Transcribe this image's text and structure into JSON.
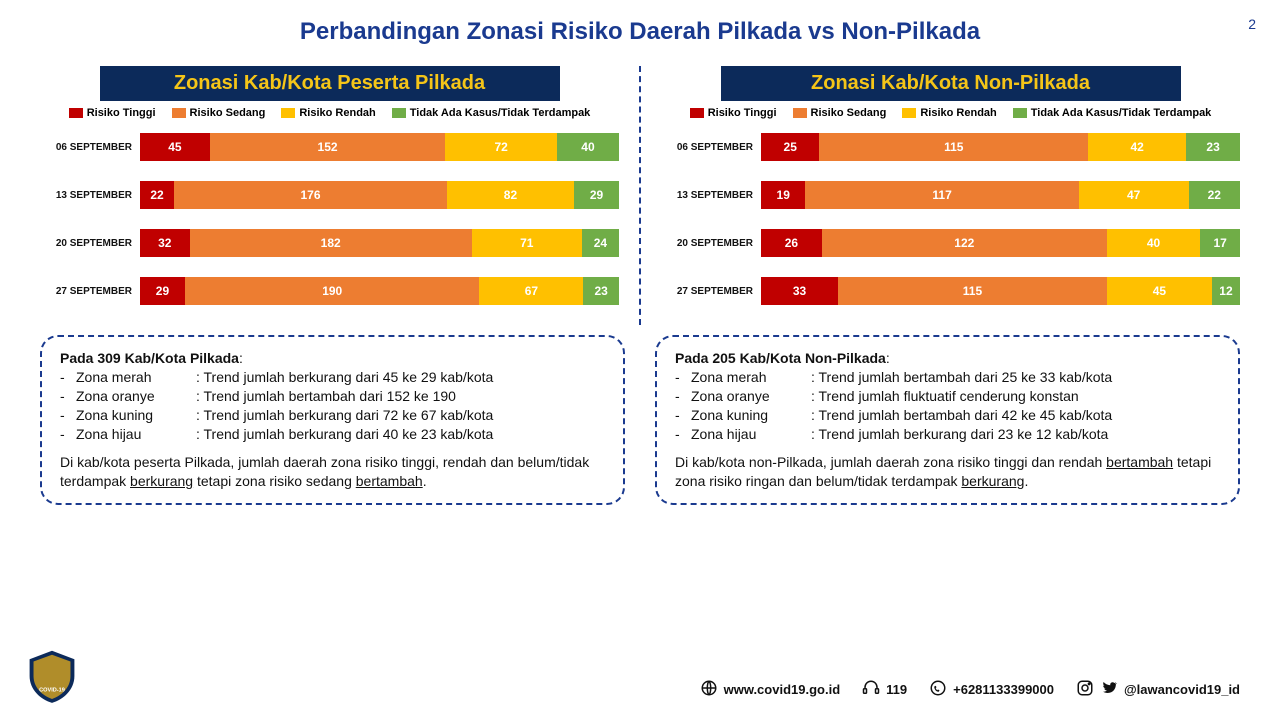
{
  "page": {
    "title": "Perbandingan Zonasi Risiko Daerah Pilkada vs Non-Pilkada",
    "number": "2",
    "background": "#ffffff",
    "title_color": "#1a3a8f"
  },
  "colors": {
    "risiko_tinggi": "#c00000",
    "risiko_sedang": "#ed7d31",
    "risiko_rendah": "#ffc000",
    "tidak_terdampak": "#70ad47",
    "panel_bg": "#0c2a5a",
    "panel_text": "#f5c518",
    "dash_border": "#1a3a8f"
  },
  "legend": {
    "items": [
      {
        "label": "Risiko Tinggi",
        "color": "#c00000"
      },
      {
        "label": "Risiko Sedang",
        "color": "#ed7d31"
      },
      {
        "label": "Risiko Rendah",
        "color": "#ffc000"
      },
      {
        "label": "Tidak Ada Kasus/Tidak Terdampak",
        "color": "#70ad47"
      }
    ]
  },
  "charts": {
    "left": {
      "title": "Zonasi Kab/Kota Peserta Pilkada",
      "type": "stacked-bar-horizontal",
      "total": 309,
      "rows": [
        {
          "label": "06 SEPTEMBER",
          "values": [
            45,
            152,
            72,
            40
          ]
        },
        {
          "label": "13 SEPTEMBER",
          "values": [
            22,
            176,
            82,
            29
          ]
        },
        {
          "label": "20 SEPTEMBER",
          "values": [
            32,
            182,
            71,
            24
          ]
        },
        {
          "label": "27 SEPTEMBER",
          "values": [
            29,
            190,
            67,
            23
          ]
        }
      ]
    },
    "right": {
      "title": "Zonasi Kab/Kota Non-Pilkada",
      "type": "stacked-bar-horizontal",
      "total": 205,
      "rows": [
        {
          "label": "06 SEPTEMBER",
          "values": [
            25,
            115,
            42,
            23
          ]
        },
        {
          "label": "13 SEPTEMBER",
          "values": [
            19,
            117,
            47,
            22
          ]
        },
        {
          "label": "20 SEPTEMBER",
          "values": [
            26,
            122,
            40,
            17
          ]
        },
        {
          "label": "27 SEPTEMBER",
          "values": [
            33,
            115,
            45,
            12
          ]
        }
      ]
    }
  },
  "info": {
    "left": {
      "header": "Pada 309 Kab/Kota Pilkada",
      "bullets": [
        {
          "zone": "Zona merah",
          "text": ": Trend jumlah berkurang dari 45 ke 29 kab/kota"
        },
        {
          "zone": "Zona oranye",
          "text": ": Trend jumlah bertambah dari 152 ke 190"
        },
        {
          "zone": "Zona kuning",
          "text": ": Trend jumlah berkurang dari 72 ke 67 kab/kota"
        },
        {
          "zone": "Zona hijau",
          "text": ": Trend jumlah berkurang dari 40 ke 23 kab/kota"
        }
      ],
      "summary_parts": [
        {
          "t": "Di kab/kota peserta Pilkada, jumlah daerah zona risiko tinggi, rendah dan belum/tidak terdampak ",
          "u": false
        },
        {
          "t": "berkurang",
          "u": true
        },
        {
          "t": " tetapi zona risiko sedang ",
          "u": false
        },
        {
          "t": "bertambah",
          "u": true
        },
        {
          "t": ".",
          "u": false
        }
      ]
    },
    "right": {
      "header": "Pada 205 Kab/Kota Non-Pilkada",
      "bullets": [
        {
          "zone": "Zona merah",
          "text": ": Trend jumlah bertambah dari 25 ke 33 kab/kota"
        },
        {
          "zone": "Zona oranye",
          "text": ": Trend jumlah fluktuatif cenderung konstan"
        },
        {
          "zone": "Zona kuning",
          "text": ": Trend jumlah bertambah dari 42 ke 45 kab/kota"
        },
        {
          "zone": "Zona hijau",
          "text": ": Trend jumlah berkurang dari 23 ke 12 kab/kota"
        }
      ],
      "summary_parts": [
        {
          "t": "Di kab/kota non-Pilkada, jumlah daerah zona risiko tinggi dan rendah ",
          "u": false
        },
        {
          "t": "bertambah",
          "u": true
        },
        {
          "t": " tetapi zona risiko ringan dan belum/tidak terdampak ",
          "u": false
        },
        {
          "t": "berkurang",
          "u": true
        },
        {
          "t": ".",
          "u": false
        }
      ]
    }
  },
  "footer": {
    "website": "www.covid19.go.id",
    "hotline": "119",
    "whatsapp": "+6281133399000",
    "social": "@lawancovid19_id"
  }
}
